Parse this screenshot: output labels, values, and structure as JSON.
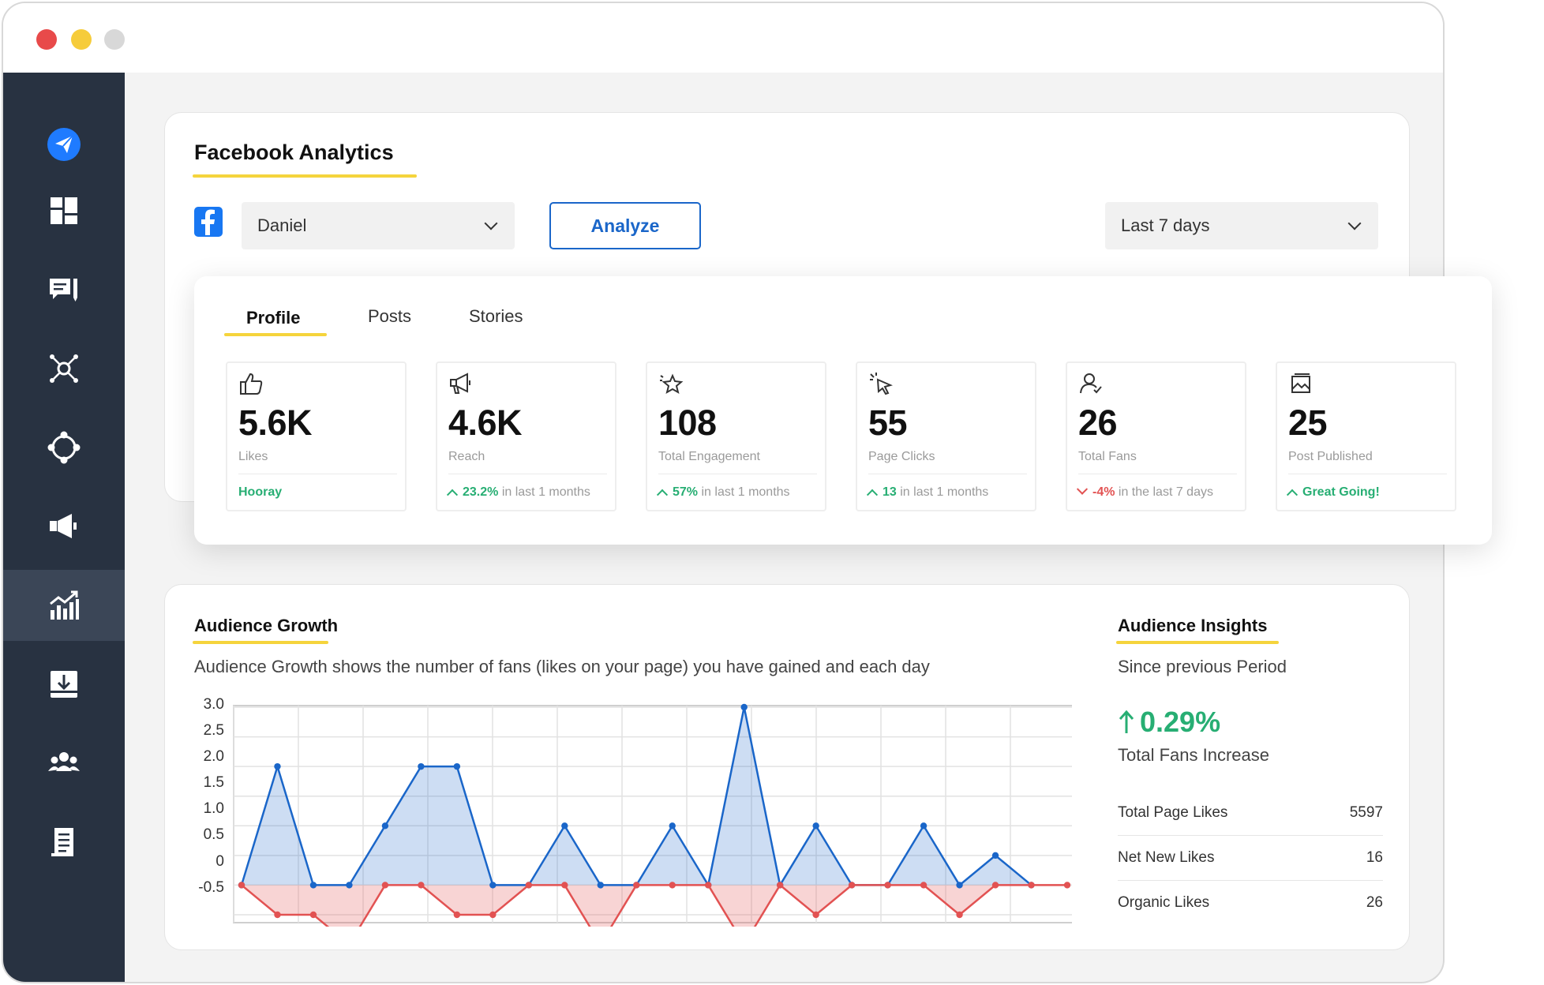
{
  "window": {
    "controls": [
      "close",
      "minimize",
      "maximize"
    ]
  },
  "sidebar": {
    "items": [
      {
        "icon": "paper-plane-icon",
        "active": false
      },
      {
        "icon": "dashboard-grid-icon",
        "active": false
      },
      {
        "icon": "chat-edit-icon",
        "active": false
      },
      {
        "icon": "network-nodes-icon",
        "active": false
      },
      {
        "icon": "workflow-cycle-icon",
        "active": false
      },
      {
        "icon": "megaphone-icon",
        "active": false
      },
      {
        "icon": "analytics-chart-icon",
        "active": true
      },
      {
        "icon": "download-tray-icon",
        "active": false
      },
      {
        "icon": "team-users-icon",
        "active": false
      },
      {
        "icon": "document-list-icon",
        "active": false
      }
    ]
  },
  "header": {
    "title": "Facebook Analytics",
    "account_select": "Daniel",
    "analyze_label": "Analyze",
    "period_select": "Last 7 days"
  },
  "tabs": [
    {
      "label": "Profile",
      "active": true
    },
    {
      "label": "Posts",
      "active": false
    },
    {
      "label": "Stories",
      "active": false
    }
  ],
  "stats": [
    {
      "icon": "thumbs-up-icon",
      "value": "5.6K",
      "label": "Likes",
      "trend": "none",
      "highlight": "Hooray",
      "rest": ""
    },
    {
      "icon": "megaphone-outline-icon",
      "value": "4.6K",
      "label": "Reach",
      "trend": "up",
      "highlight": "23.2%",
      "rest": "in last 1 months"
    },
    {
      "icon": "star-sparkle-icon",
      "value": "108",
      "label": "Total Engagement",
      "trend": "up",
      "highlight": "57%",
      "rest": "in last 1 months"
    },
    {
      "icon": "cursor-click-icon",
      "value": "55",
      "label": "Page Clicks",
      "trend": "up",
      "highlight": "13",
      "rest": "in last 1 months"
    },
    {
      "icon": "user-icon",
      "value": "26",
      "label": "Total Fans",
      "trend": "down",
      "highlight": "-4%",
      "rest": "in the last 7 days"
    },
    {
      "icon": "image-icon",
      "value": "25",
      "label": "Post Published",
      "trend": "up",
      "highlight": "Great Going!",
      "rest": ""
    }
  ],
  "growth": {
    "title": "Audience Growth",
    "description": "Audience Growth shows the number of fans (likes on your page) you have gained and each day"
  },
  "insights": {
    "title": "Audience Insights",
    "subtitle": "Since previous Period",
    "percent": "0.29%",
    "percent_label": "Total Fans Increase",
    "rows": [
      {
        "label": "Total Page Likes",
        "value": "5597"
      },
      {
        "label": "Net New Likes",
        "value": "16"
      },
      {
        "label": "Organic Likes",
        "value": "26"
      }
    ]
  },
  "colors": {
    "sidebar": "#283241",
    "accent_blue": "#1a66c9",
    "accent_yellow": "#f5d43c",
    "positive": "#27ae73",
    "negative": "#e25252",
    "facebook": "#1877f2"
  },
  "chart_data": {
    "type": "area",
    "title": "",
    "xlabel": "",
    "ylabel": "",
    "ylim": [
      -0.5,
      3.0
    ],
    "yticks": [
      "3.0",
      "2.5",
      "2.0",
      "1.5",
      "1.0",
      "0.5",
      "0",
      "-0.5"
    ],
    "grid": true,
    "series": [
      {
        "color": "#1a66c9",
        "points": [
          [
            0,
            0
          ],
          [
            1,
            2
          ],
          [
            2,
            0
          ],
          [
            3,
            0
          ],
          [
            4,
            1
          ],
          [
            5,
            2
          ],
          [
            6,
            2
          ],
          [
            7,
            0
          ],
          [
            8,
            0
          ],
          [
            9,
            1
          ],
          [
            10,
            0
          ],
          [
            11,
            0
          ],
          [
            12,
            1
          ],
          [
            13,
            0
          ],
          [
            14,
            3
          ],
          [
            15,
            0
          ],
          [
            16,
            1
          ],
          [
            17,
            0
          ],
          [
            18,
            0
          ],
          [
            19,
            1
          ],
          [
            20,
            0
          ],
          [
            21,
            0.5
          ],
          [
            22,
            0
          ]
        ]
      },
      {
        "color": "#e25252",
        "points": [
          [
            0,
            0
          ],
          [
            1,
            -0.5
          ],
          [
            2,
            -0.5
          ],
          [
            3,
            -1
          ],
          [
            4,
            0
          ],
          [
            5,
            0
          ],
          [
            6,
            -0.5
          ],
          [
            7,
            -0.5
          ],
          [
            8,
            0
          ],
          [
            9,
            0
          ],
          [
            10,
            -1
          ],
          [
            11,
            0
          ],
          [
            12,
            0
          ],
          [
            13,
            0
          ],
          [
            14,
            -1
          ],
          [
            15,
            0
          ],
          [
            16,
            -0.5
          ],
          [
            17,
            0
          ],
          [
            18,
            0
          ],
          [
            19,
            0
          ],
          [
            20,
            -0.5
          ],
          [
            21,
            0
          ],
          [
            22,
            0
          ],
          [
            23,
            0
          ]
        ]
      }
    ]
  }
}
